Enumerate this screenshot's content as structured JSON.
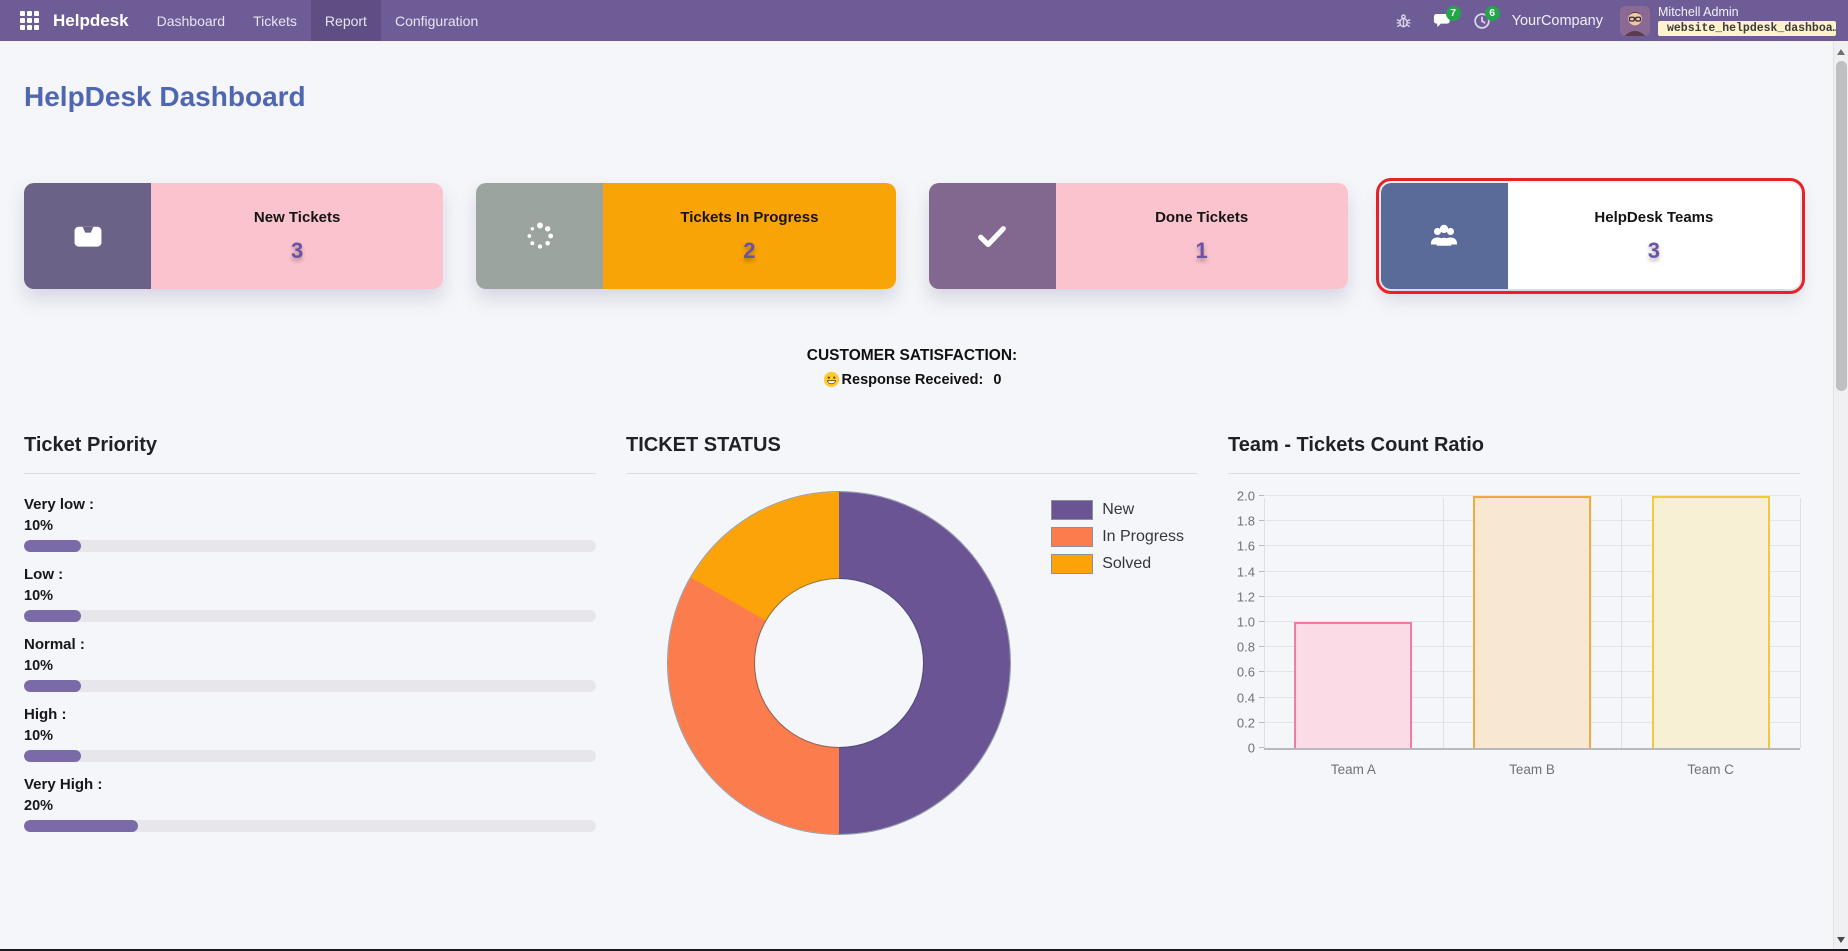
{
  "navbar": {
    "brand": "Helpdesk",
    "items": [
      {
        "label": "Dashboard",
        "active": false
      },
      {
        "label": "Tickets",
        "active": false
      },
      {
        "label": "Report",
        "active": true
      },
      {
        "label": "Configuration",
        "active": false
      }
    ],
    "message_badge": "7",
    "activity_badge": "6",
    "company": "YourCompany",
    "user_name": "Mitchell Admin",
    "database": "website_helpdesk_dashboa…"
  },
  "page": {
    "title": "HelpDesk Dashboard"
  },
  "cards": [
    {
      "title": "New Tickets",
      "count": "3",
      "icon": "inbox-icon",
      "icon_bg": "#6b6287",
      "body_bg": "#fbc3ce",
      "highlight": false
    },
    {
      "title": "Tickets In Progress",
      "count": "2",
      "icon": "spinner-icon",
      "icon_bg": "#9ba49f",
      "body_bg": "#f9a406",
      "highlight": false
    },
    {
      "title": "Done Tickets",
      "count": "1",
      "icon": "check-icon",
      "icon_bg": "#82678f",
      "body_bg": "#fbc3ce",
      "highlight": false
    },
    {
      "title": "HelpDesk Teams",
      "count": "3",
      "icon": "users-icon",
      "icon_bg": "#5b6b99",
      "body_bg": "#ffffff",
      "highlight": true,
      "highlight_color": "#e92025"
    }
  ],
  "satisfaction": {
    "title": "CUSTOMER SATISFACTION:",
    "emoji_icon": "smiley-icon",
    "response_label": "Response Received:",
    "response_value": "0"
  },
  "chart_data": [
    {
      "type": "bar",
      "orientation": "horizontal",
      "title": "Ticket Priority",
      "items": [
        {
          "label": "Very low :",
          "percent": 10
        },
        {
          "label": "Low :",
          "percent": 10
        },
        {
          "label": "Normal :",
          "percent": 10
        },
        {
          "label": "High :",
          "percent": 10
        },
        {
          "label": "Very High :",
          "percent": 20
        }
      ],
      "bar_color": "#7a6aa8",
      "track_color": "#e7e7eb",
      "xlim": [
        0,
        100
      ]
    },
    {
      "type": "pie",
      "title": "TICKET STATUS",
      "labels": [
        "New",
        "In Progress",
        "Solved"
      ],
      "values": [
        3,
        2,
        1
      ],
      "colors": [
        "#6a5494",
        "#fb7c4c",
        "#fba309"
      ],
      "donut": true,
      "legend_position": "right"
    },
    {
      "type": "bar",
      "title": "Team - Tickets Count Ratio",
      "categories": [
        "Team A",
        "Team B",
        "Team C"
      ],
      "values": [
        1,
        2,
        2
      ],
      "bar_fills": [
        "#fbdce6",
        "#f8e7d2",
        "#f8f0d4"
      ],
      "bar_borders": [
        "#ef7ca0",
        "#f2a93d",
        "#eec93f"
      ],
      "ylim": [
        0,
        2
      ],
      "ytick_step": 0.2,
      "grid": true
    }
  ]
}
